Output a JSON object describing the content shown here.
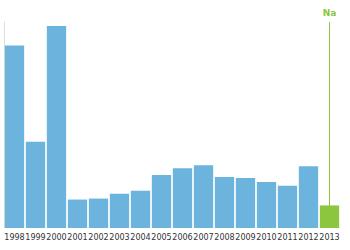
{
  "chart_data": {
    "type": "bar",
    "categories": [
      "1998",
      "1999",
      "2000",
      "2001",
      "2002",
      "2003",
      "2004",
      "2005",
      "2006",
      "2007",
      "2008",
      "2009",
      "2010",
      "2011",
      "2012",
      "2013"
    ],
    "values": [
      186,
      88,
      206,
      29,
      30,
      35,
      38,
      54,
      61,
      64,
      52,
      51,
      47,
      43,
      63,
      23
    ],
    "colors": [
      "#6cb4dd",
      "#6cb4dd",
      "#6cb4dd",
      "#6cb4dd",
      "#6cb4dd",
      "#6cb4dd",
      "#6cb4dd",
      "#6cb4dd",
      "#6cb4dd",
      "#6cb4dd",
      "#6cb4dd",
      "#6cb4dd",
      "#6cb4dd",
      "#6cb4dd",
      "#6cb4dd",
      "#8cc63f"
    ],
    "annotation": "Na",
    "ylim": [
      0,
      210
    ],
    "grid": false,
    "tick_labels": "x"
  }
}
